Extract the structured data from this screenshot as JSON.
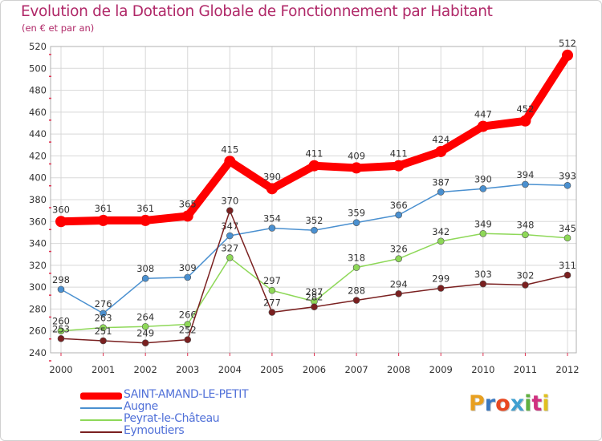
{
  "header": {
    "title": "Evolution de la Dotation Globale de Fonctionnement par Habitant",
    "subtitle": "(en € et par an)"
  },
  "colors": {
    "title": "#b02868",
    "legend_text": "#5070d8",
    "grid": "#d8d8d8",
    "tick_marks": "#e03050"
  },
  "logo": {
    "text": "Proxiti",
    "colors": [
      "#e8a020",
      "#3a78c0",
      "#e84820",
      "#40a0d0",
      "#60b040",
      "#d03080",
      "#e0c020"
    ]
  },
  "chart_data": {
    "type": "line",
    "title": "Evolution de la Dotation Globale de Fonctionnement par Habitant",
    "subtitle": "(en € et par an)",
    "xlabel": "",
    "ylabel": "",
    "ylim": [
      240,
      520
    ],
    "yticks": [
      240,
      260,
      280,
      300,
      320,
      340,
      360,
      380,
      400,
      420,
      440,
      460,
      480,
      500,
      520
    ],
    "grid": true,
    "legend_position": "bottom-left",
    "categories": [
      "2000",
      "2001",
      "2002",
      "2003",
      "2004",
      "2005",
      "2006",
      "2007",
      "2008",
      "2009",
      "2010",
      "2011",
      "2012"
    ],
    "series": [
      {
        "name": "SAINT-AMAND-LE-PETIT",
        "color": "#ff0000",
        "width": "thick",
        "values": [
          360,
          361,
          361,
          365,
          415,
          390,
          411,
          409,
          411,
          424,
          447,
          452,
          512
        ]
      },
      {
        "name": "Augne",
        "color": "#4a90d0",
        "width": "thin",
        "values": [
          298,
          276,
          308,
          309,
          347,
          354,
          352,
          359,
          366,
          387,
          390,
          394,
          393
        ]
      },
      {
        "name": "Peyrat-le-Château",
        "color": "#8ed858",
        "width": "thin",
        "values": [
          260,
          263,
          264,
          266,
          327,
          297,
          287,
          318,
          326,
          342,
          349,
          348,
          345
        ]
      },
      {
        "name": "Eymoutiers",
        "color": "#7a2020",
        "width": "thin",
        "values": [
          253,
          251,
          249,
          252,
          370,
          277,
          282,
          288,
          294,
          299,
          303,
          302,
          311
        ]
      }
    ]
  }
}
